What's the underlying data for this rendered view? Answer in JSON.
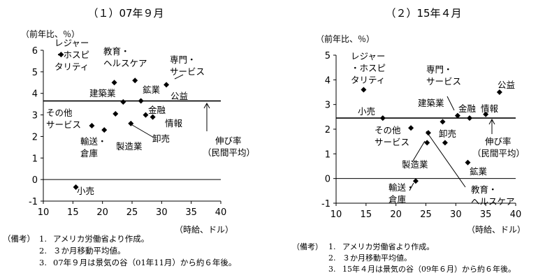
{
  "chart_data": [
    {
      "type": "scatter",
      "title": "（１）07年９月",
      "ylabel": "（前年比、％）",
      "xlabel": "（時給、ドル）",
      "xlim": [
        10,
        40
      ],
      "ylim": [
        -1,
        6
      ],
      "x_ticks": [
        10,
        15,
        20,
        25,
        30,
        35,
        40
      ],
      "y_ticks": [
        -1,
        0,
        1,
        2,
        3,
        4,
        5,
        6
      ],
      "average_line": 3.65,
      "average_label": [
        "伸び率",
        "（民間平均）"
      ],
      "points": [
        {
          "label": "レジャー・ホスピタリティ",
          "x": 13.0,
          "y": 5.8
        },
        {
          "label": "教育・ヘルスケア",
          "x": 22.0,
          "y": 4.5
        },
        {
          "label": "専門・サービス",
          "x": 25.5,
          "y": 4.6
        },
        {
          "label": "建築業",
          "x": 23.5,
          "y": 3.6
        },
        {
          "label": "鉱業",
          "x": 26.5,
          "y": 3.65
        },
        {
          "label": "公益",
          "x": 30.8,
          "y": 4.4
        },
        {
          "label": "金融",
          "x": 27.3,
          "y": 3.0
        },
        {
          "label": "情報",
          "x": 28.5,
          "y": 2.9
        },
        {
          "label": "その他サービス",
          "x": 18.2,
          "y": 2.5
        },
        {
          "label": "輸送・倉庫",
          "x": 20.3,
          "y": 2.3
        },
        {
          "label": "製造業",
          "x": 22.2,
          "y": 3.05
        },
        {
          "label": "卸売",
          "x": 24.8,
          "y": 2.6
        },
        {
          "label": "小売",
          "x": 15.5,
          "y": -0.35
        }
      ],
      "labels": [
        {
          "key": "leisure",
          "lines": [
            "レジャー",
            "・ホスピ",
            "タリティ"
          ]
        },
        {
          "key": "edu",
          "lines": [
            "教育・",
            "ヘルスケア"
          ]
        },
        {
          "key": "prof",
          "lines": [
            "専門・",
            "サービス"
          ]
        },
        {
          "key": "construction",
          "lines": [
            "建築業"
          ]
        },
        {
          "key": "mining",
          "lines": [
            "鉱業"
          ]
        },
        {
          "key": "utility",
          "lines": [
            "公益"
          ]
        },
        {
          "key": "finance",
          "lines": [
            "金融"
          ]
        },
        {
          "key": "info",
          "lines": [
            "情報"
          ]
        },
        {
          "key": "other",
          "lines": [
            "その他",
            "サービス"
          ]
        },
        {
          "key": "transport",
          "lines": [
            "輸送・",
            "倉庫"
          ]
        },
        {
          "key": "manuf",
          "lines": [
            "製造業"
          ]
        },
        {
          "key": "wholesale",
          "lines": [
            "卸売"
          ]
        },
        {
          "key": "retail",
          "lines": [
            "小売"
          ]
        }
      ]
    },
    {
      "type": "scatter",
      "title": "（２）15年４月",
      "ylabel": "（前年比、％）",
      "xlabel": "（時給、ドル）",
      "xlim": [
        10,
        40
      ],
      "ylim": [
        -1,
        5
      ],
      "x_ticks": [
        10,
        15,
        20,
        25,
        30,
        35,
        40
      ],
      "y_ticks": [
        -1,
        0,
        1,
        2,
        3,
        4,
        5
      ],
      "average_line": 2.45,
      "average_label": [
        "伸び率",
        "（民間平均）"
      ],
      "points": [
        {
          "label": "レジャー・ホスピタリティ",
          "x": 14.6,
          "y": 3.6
        },
        {
          "label": "専門・サービス",
          "x": 30.3,
          "y": 2.55
        },
        {
          "label": "公益",
          "x": 37.3,
          "y": 3.5
        },
        {
          "label": "建築業",
          "x": 27.8,
          "y": 2.3
        },
        {
          "label": "金融",
          "x": 32.3,
          "y": 2.45
        },
        {
          "label": "情報",
          "x": 35.0,
          "y": 2.6
        },
        {
          "label": "小売",
          "x": 17.8,
          "y": 2.45
        },
        {
          "label": "その他サービス",
          "x": 22.5,
          "y": 2.05
        },
        {
          "label": "卸売",
          "x": 28.2,
          "y": 1.45
        },
        {
          "label": "教育・ヘルスケア",
          "x": 25.4,
          "y": 1.85
        },
        {
          "label": "製造業",
          "x": 25.2,
          "y": 1.45
        },
        {
          "label": "鉱業",
          "x": 32.0,
          "y": 0.65
        },
        {
          "label": "輸送・倉庫",
          "x": 23.3,
          "y": -0.1
        }
      ],
      "labels": [
        {
          "key": "leisure",
          "lines": [
            "レジャー",
            "・ホスピ",
            "タリティ"
          ]
        },
        {
          "key": "prof",
          "lines": [
            "専門・",
            "サービス"
          ]
        },
        {
          "key": "utility",
          "lines": [
            "公益"
          ]
        },
        {
          "key": "construction",
          "lines": [
            "建築業"
          ]
        },
        {
          "key": "finance",
          "lines": [
            "金融"
          ]
        },
        {
          "key": "info",
          "lines": [
            "情報"
          ]
        },
        {
          "key": "retail",
          "lines": [
            "小売"
          ]
        },
        {
          "key": "other",
          "lines": [
            "その他",
            "サービス"
          ]
        },
        {
          "key": "wholesale",
          "lines": [
            "卸売"
          ]
        },
        {
          "key": "edu",
          "lines": [
            "教育・",
            "ヘルスケア"
          ]
        },
        {
          "key": "manuf",
          "lines": [
            "製造業"
          ]
        },
        {
          "key": "mining",
          "lines": [
            "鉱業"
          ]
        },
        {
          "key": "transport",
          "lines": [
            "輸送・",
            "倉庫"
          ]
        }
      ]
    }
  ],
  "notes": [
    {
      "lead": "（備考）",
      "items": [
        {
          "num": "1.",
          "text": "アメリカ労働省より作成。"
        },
        {
          "num": "2.",
          "text": "３か月移動平均値。"
        },
        {
          "num": "3.",
          "text": "07年９月は景気の谷（01年11月）から約６年後。"
        }
      ]
    },
    {
      "lead": "（備考）",
      "items": [
        {
          "num": "1.",
          "text": "アメリカ労働省より作成。"
        },
        {
          "num": "2.",
          "text": "３か月移動平均値。"
        },
        {
          "num": "3.",
          "text": "15年４月は景気の谷（09年６月）から約６年後。"
        }
      ]
    }
  ]
}
